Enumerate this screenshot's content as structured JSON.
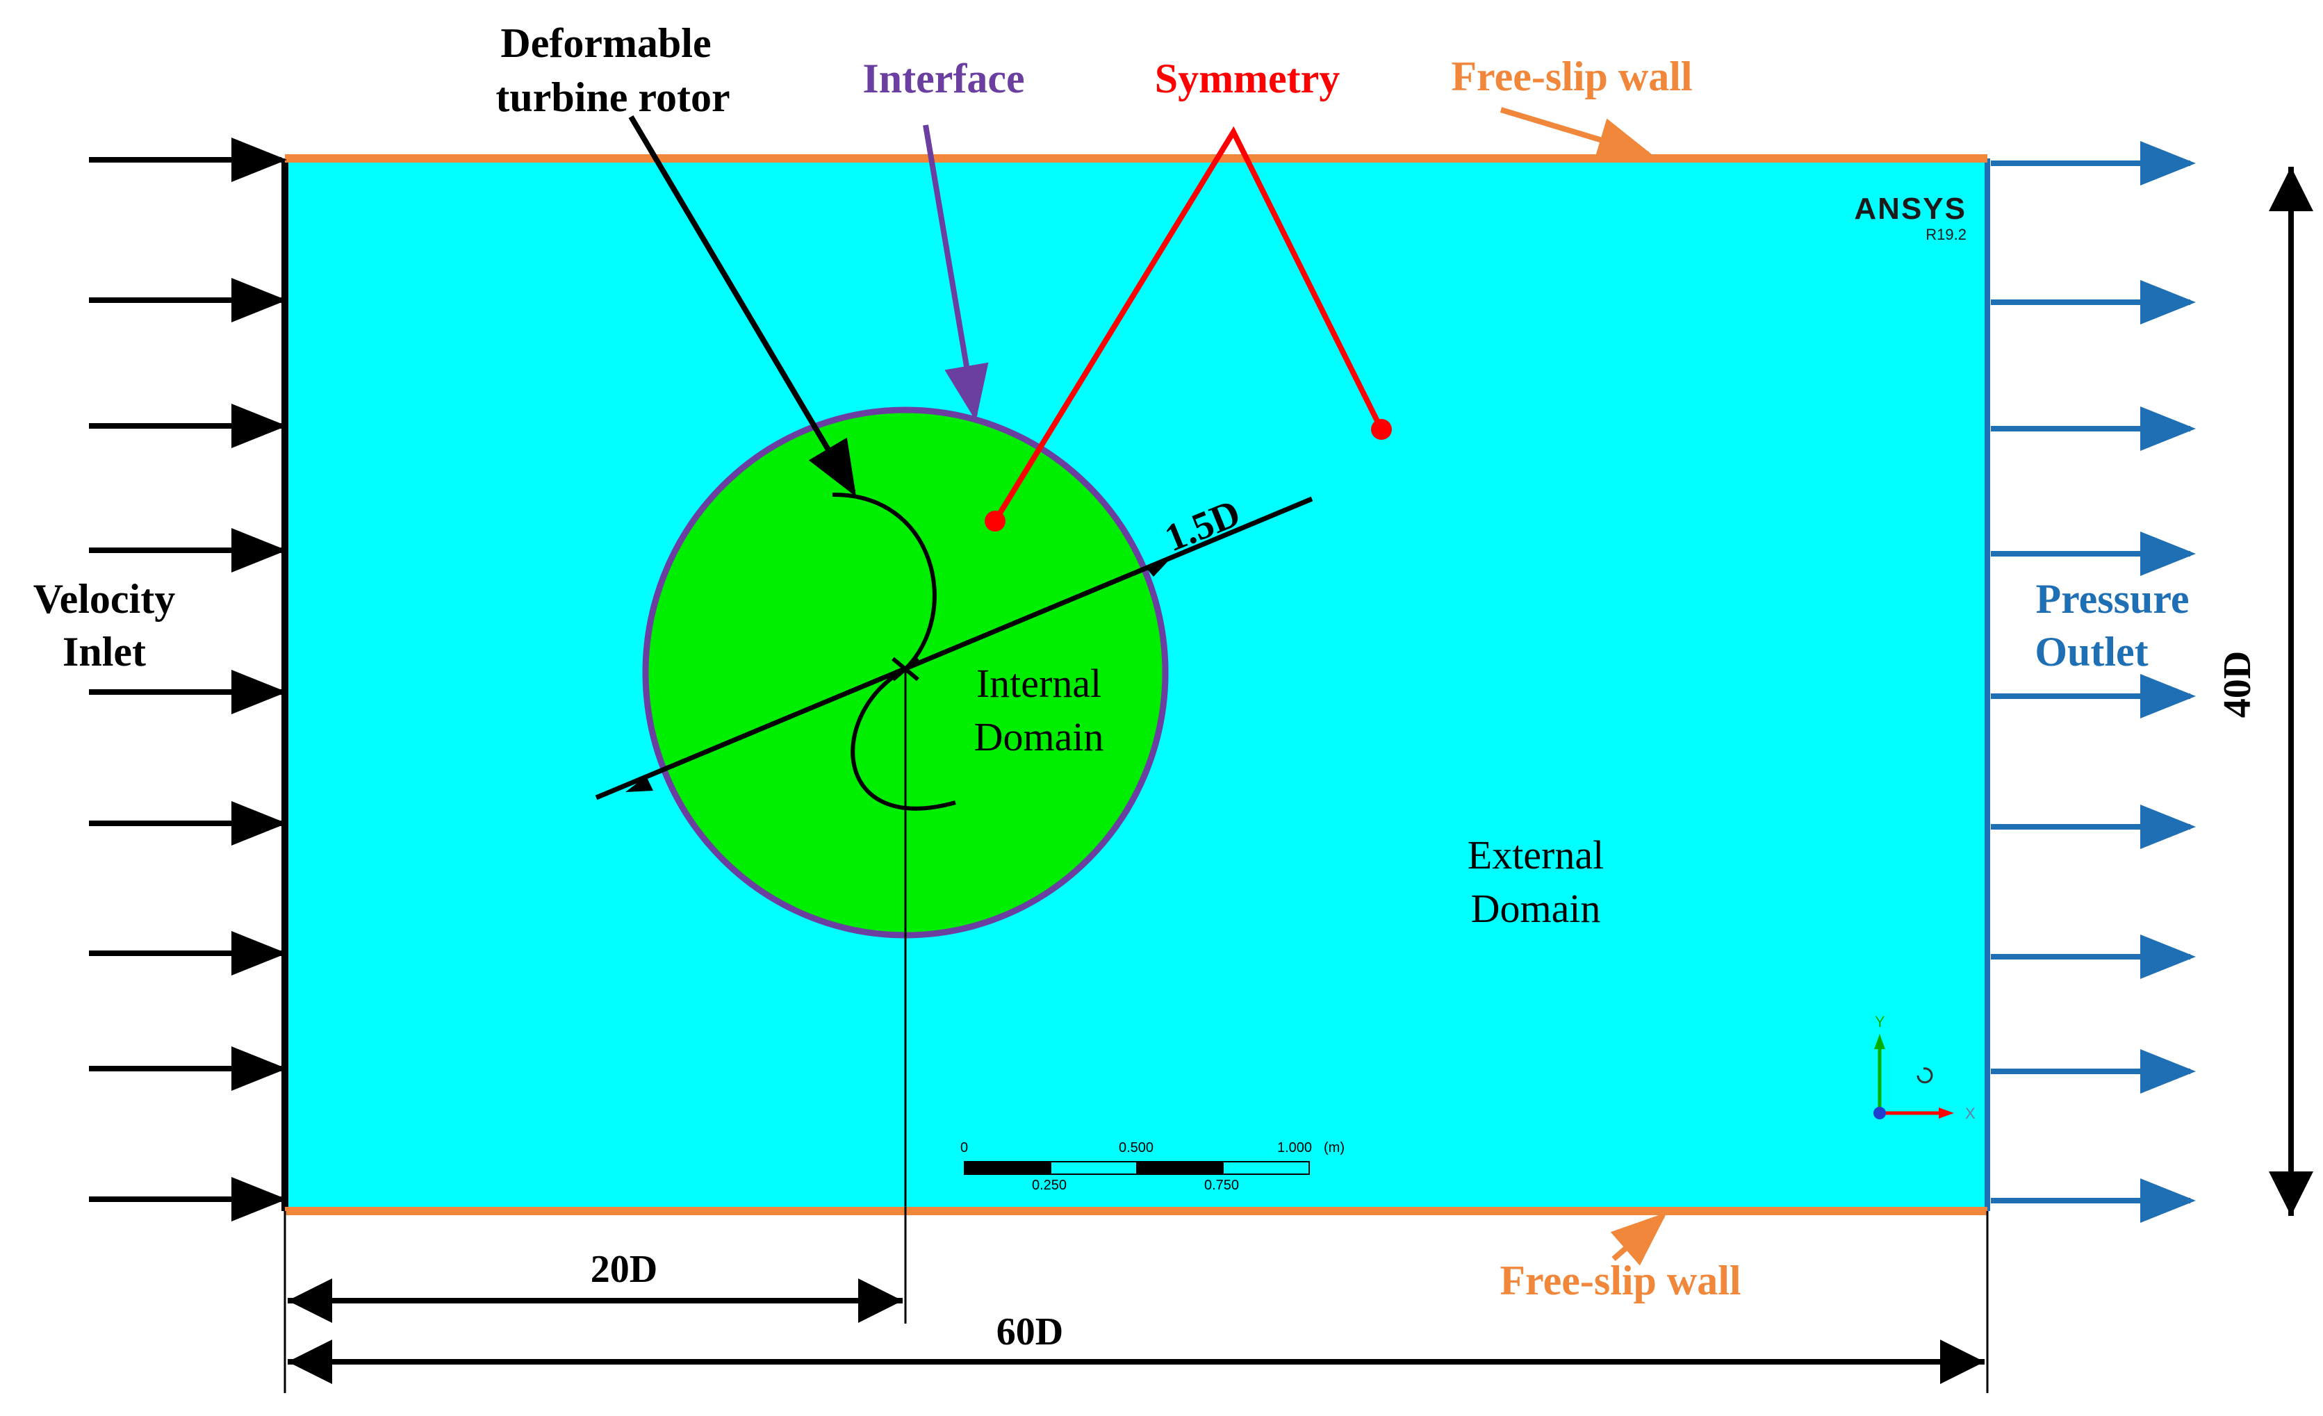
{
  "labels": {
    "deformable_line1": "Deformable",
    "deformable_line2": "turbine rotor",
    "interface": "Interface",
    "symmetry": "Symmetry",
    "free_slip_top": "Free-slip wall",
    "free_slip_bottom": "Free-slip wall",
    "velocity_line1": "Velocity",
    "velocity_line2": "Inlet",
    "pressure_line1": "Pressure",
    "pressure_line2": "Outlet",
    "internal_line1": "Internal",
    "internal_line2": "Domain",
    "external_line1": "External",
    "external_line2": "Domain",
    "dim_diameter": "1.5D",
    "dim_height": "40D",
    "dim_offset": "20D",
    "dim_length": "60D"
  },
  "ansys": {
    "brand": "ANSYS",
    "version": "R19.2"
  },
  "scale_bar": {
    "tick_0": "0",
    "tick_0500": "0.500",
    "tick_1000": "1.000",
    "unit": "(m)",
    "tick_0250": "0.250",
    "tick_0750": "0.750"
  },
  "axes_triad": {
    "y": "Y",
    "x": "X"
  },
  "colors": {
    "external_domain": "#00ffff",
    "internal_domain": "#00ee00",
    "interface": "#6a3fa0",
    "symmetry": "#ff0000",
    "free_slip_wall": "#f0873a",
    "pressure_outlet": "#1f6fb5",
    "velocity_inlet": "#000000"
  }
}
